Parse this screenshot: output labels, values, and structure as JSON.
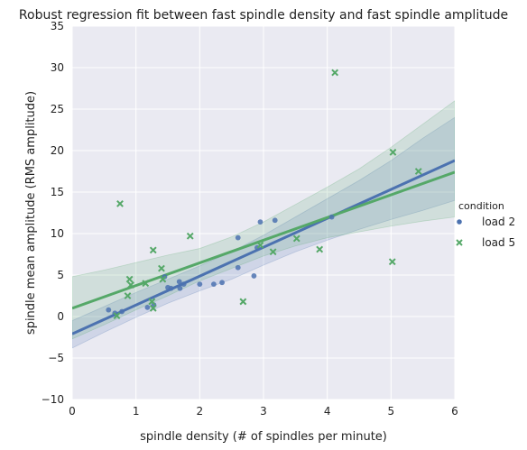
{
  "chart_data": {
    "type": "scatter",
    "title": "Robust regression fit between fast spindle density and fast spindle amplitude",
    "xlabel": "spindle density (# of spindles per minute)",
    "ylabel": "spindle mean amplitude (RMS amplitude)",
    "xlim": [
      0,
      6
    ],
    "ylim": [
      -10,
      35
    ],
    "xticks": [
      0,
      1,
      2,
      3,
      4,
      5,
      6
    ],
    "yticks": [
      -10,
      -5,
      0,
      5,
      10,
      15,
      20,
      25,
      30,
      35
    ],
    "grid": true,
    "legend": {
      "title": "condition",
      "placement": "right"
    },
    "series": [
      {
        "name": "load 2",
        "marker": "circle",
        "color": "#4C72B0",
        "points": [
          [
            0.57,
            0.8
          ],
          [
            0.67,
            0.4
          ],
          [
            0.78,
            0.6
          ],
          [
            1.18,
            1.1
          ],
          [
            1.28,
            1.4
          ],
          [
            1.45,
            4.8
          ],
          [
            1.5,
            3.5
          ],
          [
            1.55,
            3.4
          ],
          [
            1.68,
            4.2
          ],
          [
            1.69,
            3.4
          ],
          [
            1.75,
            3.9
          ],
          [
            2.0,
            3.9
          ],
          [
            2.22,
            3.9
          ],
          [
            2.35,
            4.1
          ],
          [
            2.6,
            5.9
          ],
          [
            2.6,
            9.5
          ],
          [
            2.85,
            4.9
          ],
          [
            2.9,
            8.3
          ],
          [
            2.95,
            11.4
          ],
          [
            3.18,
            11.6
          ],
          [
            4.07,
            12.0
          ]
        ],
        "fit": {
          "x": [
            0,
            6
          ],
          "y": [
            -2.1,
            18.8
          ]
        },
        "ci": {
          "x": [
            0,
            0.5,
            1,
            1.5,
            2,
            2.5,
            3,
            3.5,
            4,
            4.5,
            5,
            5.5,
            6
          ],
          "lower": [
            -3.8,
            -1.9,
            -0.1,
            1.6,
            3.1,
            4.5,
            6.2,
            7.8,
            9.2,
            10.5,
            11.7,
            12.8,
            14.0
          ],
          "upper": [
            -0.5,
            1.2,
            2.9,
            4.5,
            6.1,
            7.8,
            9.8,
            12.0,
            14.2,
            16.4,
            18.8,
            21.5,
            24.0
          ]
        }
      },
      {
        "name": "load 5",
        "marker": "x",
        "color": "#55A868",
        "points": [
          [
            0.7,
            0.1
          ],
          [
            0.75,
            13.6
          ],
          [
            0.87,
            2.5
          ],
          [
            0.9,
            4.5
          ],
          [
            0.92,
            3.8
          ],
          [
            1.15,
            4.0
          ],
          [
            1.25,
            1.8
          ],
          [
            1.27,
            1.0
          ],
          [
            1.27,
            8.0
          ],
          [
            1.4,
            5.8
          ],
          [
            1.42,
            4.5
          ],
          [
            1.85,
            9.7
          ],
          [
            2.68,
            1.8
          ],
          [
            2.95,
            8.6
          ],
          [
            3.15,
            7.8
          ],
          [
            3.52,
            9.4
          ],
          [
            3.88,
            8.1
          ],
          [
            4.12,
            29.4
          ],
          [
            5.02,
            6.6
          ],
          [
            5.03,
            19.8
          ],
          [
            5.43,
            17.5
          ]
        ],
        "fit": {
          "x": [
            0,
            6
          ],
          "y": [
            1.0,
            17.4
          ]
        },
        "ci": {
          "x": [
            0,
            0.5,
            1,
            1.5,
            2,
            2.5,
            3,
            3.5,
            4,
            4.5,
            5,
            5.5,
            6
          ],
          "lower": [
            -2.7,
            -1.0,
            0.8,
            2.5,
            4.3,
            5.8,
            7.3,
            8.5,
            9.5,
            10.2,
            10.9,
            11.5,
            12.0
          ],
          "upper": [
            4.8,
            5.6,
            6.5,
            7.4,
            8.2,
            9.6,
            11.4,
            13.5,
            15.6,
            17.8,
            20.4,
            23.2,
            26.0
          ]
        }
      }
    ]
  }
}
